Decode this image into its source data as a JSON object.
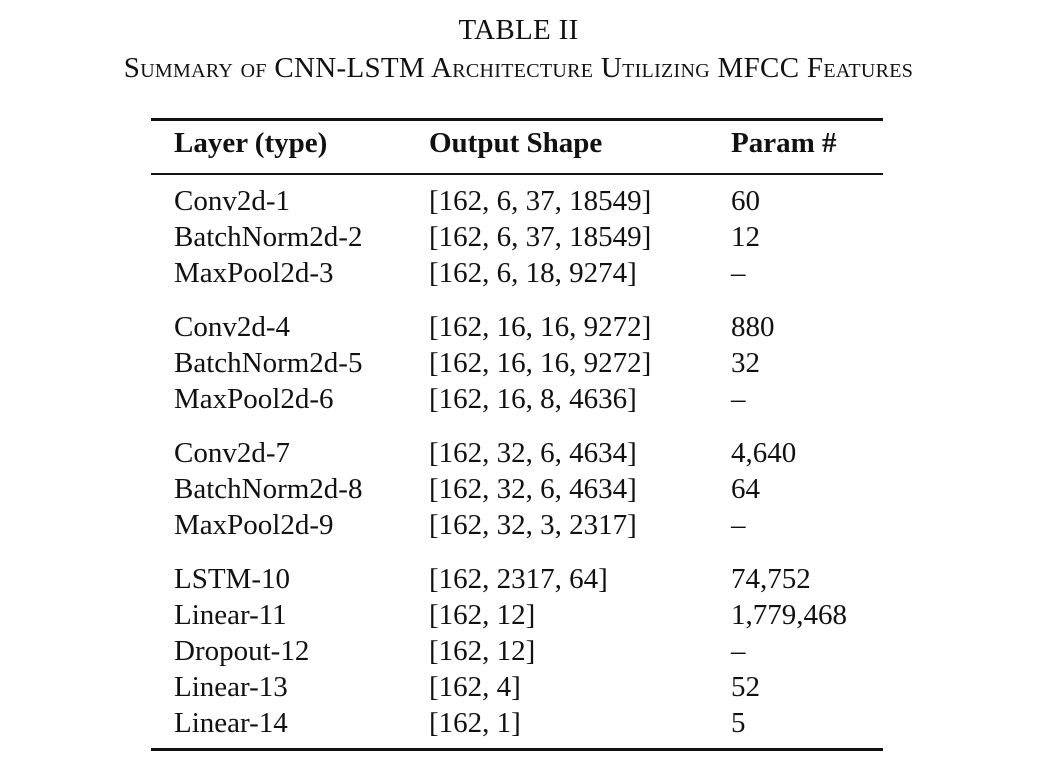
{
  "table": {
    "label": "TABLE II",
    "title": "Summary of CNN-LSTM Architecture Utilizing MFCC Features",
    "headers": [
      "Layer (type)",
      "Output Shape",
      "Param #"
    ],
    "groups": [
      [
        {
          "layer": "Conv2d-1",
          "shape": "[162, 6, 37, 18549]",
          "params": "60"
        },
        {
          "layer": "BatchNorm2d-2",
          "shape": "[162, 6, 37, 18549]",
          "params": "12"
        },
        {
          "layer": "MaxPool2d-3",
          "shape": "[162, 6, 18, 9274]",
          "params": "–"
        }
      ],
      [
        {
          "layer": "Conv2d-4",
          "shape": "[162, 16, 16, 9272]",
          "params": "880"
        },
        {
          "layer": "BatchNorm2d-5",
          "shape": "[162, 16, 16, 9272]",
          "params": "32"
        },
        {
          "layer": "MaxPool2d-6",
          "shape": "[162, 16, 8, 4636]",
          "params": "–"
        }
      ],
      [
        {
          "layer": "Conv2d-7",
          "shape": "[162, 32, 6, 4634]",
          "params": "4,640"
        },
        {
          "layer": "BatchNorm2d-8",
          "shape": "[162, 32, 6, 4634]",
          "params": "64"
        },
        {
          "layer": "MaxPool2d-9",
          "shape": "[162, 32, 3, 2317]",
          "params": "–"
        }
      ],
      [
        {
          "layer": "LSTM-10",
          "shape": "[162, 2317, 64]",
          "params": "74,752"
        },
        {
          "layer": "Linear-11",
          "shape": "[162, 12]",
          "params": "1,779,468"
        },
        {
          "layer": "Dropout-12",
          "shape": "[162, 12]",
          "params": "–"
        },
        {
          "layer": "Linear-13",
          "shape": "[162, 4]",
          "params": "52"
        },
        {
          "layer": "Linear-14",
          "shape": "[162, 1]",
          "params": "5"
        }
      ]
    ]
  }
}
